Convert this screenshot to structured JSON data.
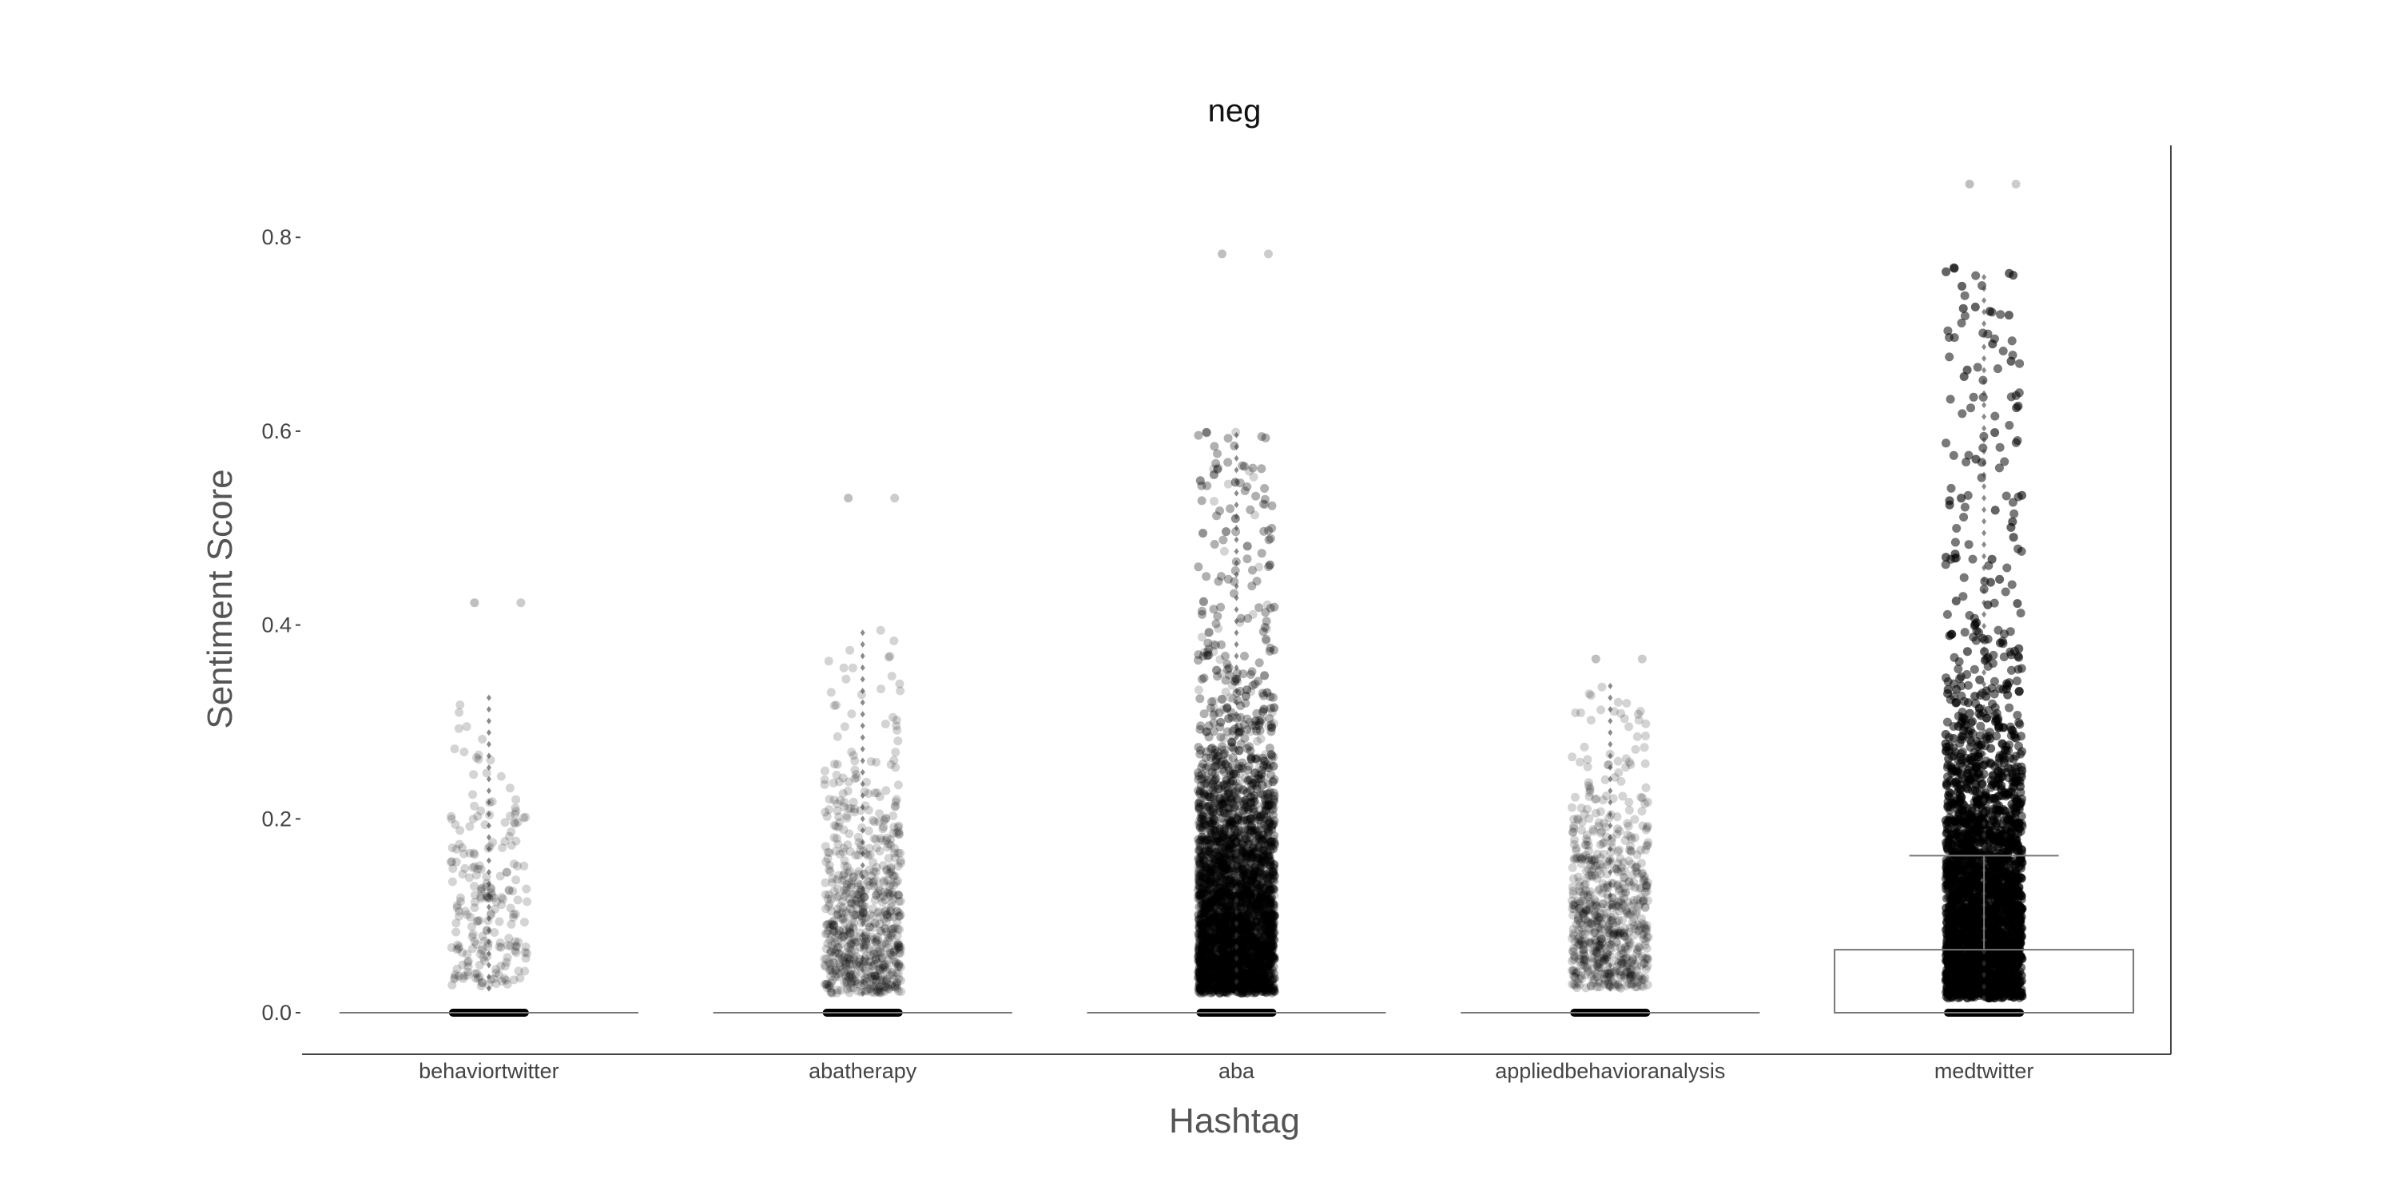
{
  "chart_data": {
    "type": "box",
    "title": "neg",
    "xlabel": "Hashtag",
    "ylabel": "Sentiment Score",
    "ylim": [
      -0.042,
      0.9
    ],
    "yticks": [
      0.0,
      0.2,
      0.4,
      0.6,
      0.8
    ],
    "ytick_labels": [
      "0.0",
      "0.2",
      "0.4",
      "0.6",
      "0.8"
    ],
    "grid": false,
    "categories": [
      "behaviortwitter",
      "abatherapy",
      "aba",
      "appliedbehavioranalysis",
      "medtwitter"
    ],
    "boxes": [
      {
        "name": "behaviortwitter",
        "q1": 0.0,
        "median": 0.0,
        "q3": 0.0,
        "whisker_low": 0.0,
        "whisker_high": 0.0,
        "nonzero_range": [
          0.025,
          0.33
        ],
        "outlier_max": 0.423,
        "density": "sparse"
      },
      {
        "name": "abatherapy",
        "q1": 0.0,
        "median": 0.0,
        "q3": 0.0,
        "whisker_low": 0.0,
        "whisker_high": 0.0,
        "nonzero_range": [
          0.02,
          0.4
        ],
        "outlier_max": 0.531,
        "density": "moderate"
      },
      {
        "name": "aba",
        "q1": 0.0,
        "median": 0.0,
        "q3": 0.0,
        "whisker_low": 0.0,
        "whisker_high": 0.0,
        "nonzero_range": [
          0.02,
          0.6
        ],
        "outlier_max": 0.783,
        "density": "dense"
      },
      {
        "name": "appliedbehavioranalysis",
        "q1": 0.0,
        "median": 0.0,
        "q3": 0.0,
        "whisker_low": 0.0,
        "whisker_high": 0.0,
        "nonzero_range": [
          0.025,
          0.34
        ],
        "outlier_max": 0.365,
        "density": "moderate"
      },
      {
        "name": "medtwitter",
        "q1": 0.0,
        "median": 0.0,
        "q3": 0.065,
        "whisker_low": 0.0,
        "whisker_high": 0.162,
        "nonzero_range": [
          0.015,
          0.77
        ],
        "outlier_max": 0.855,
        "density": "very-dense"
      }
    ]
  }
}
